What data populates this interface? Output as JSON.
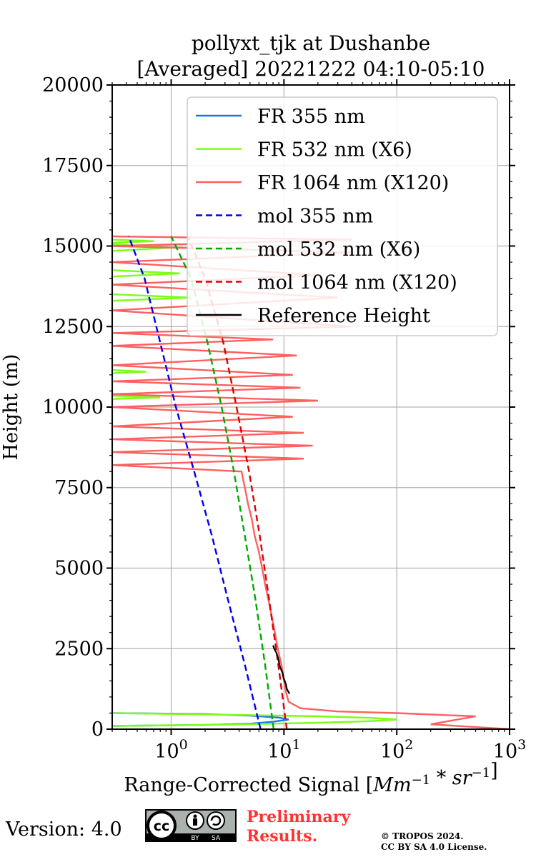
{
  "chart_data": {
    "type": "line",
    "title": [
      "pollyxt_tjk at Dushanbe",
      "[Averaged] 20221222 04:10-05:10"
    ],
    "xlabel": "Range-Corrected Signal [Mm^-1 * sr^-1]",
    "ylabel": "Height (m)",
    "xscale": "log",
    "xlim": [
      0.3,
      1000
    ],
    "ylim": [
      0,
      20000
    ],
    "xticks": [
      1,
      10,
      100,
      1000
    ],
    "xtick_labels": [
      [
        "10",
        "0"
      ],
      [
        "10",
        "1"
      ],
      [
        "10",
        "2"
      ],
      [
        "10",
        "3"
      ]
    ],
    "yticks": [
      0,
      2500,
      5000,
      7500,
      10000,
      12500,
      15000,
      17500,
      20000
    ],
    "ytick_labels": [
      "0",
      "2500",
      "5000",
      "7500",
      "10000",
      "12500",
      "15000",
      "17500",
      "20000"
    ],
    "grid": true,
    "legend_position": "upper-right",
    "series": [
      {
        "name": "FR 355 nm",
        "color": "#1a75e8",
        "style": "solid",
        "x": [
          0.3,
          2,
          5,
          8,
          11,
          9,
          5,
          2,
          0.3
        ],
        "y": [
          100,
          130,
          170,
          230,
          300,
          360,
          420,
          470,
          500
        ]
      },
      {
        "name": "FR 532 nm (X6)",
        "color": "#7cfc1a",
        "style": "solid",
        "x": [
          0.3,
          3,
          20,
          60,
          100,
          60,
          20,
          3,
          0.3,
          0.3,
          0.8,
          0.3,
          0.3,
          0.6,
          0.3,
          0.3,
          1.5,
          0.3,
          0.3,
          1.2,
          0.3,
          0.3,
          1,
          0.3,
          0.3,
          0.7,
          0.3
        ],
        "y": [
          100,
          140,
          200,
          250,
          300,
          350,
          400,
          450,
          500,
          10250,
          10300,
          10350,
          11050,
          11100,
          11150,
          13300,
          13400,
          13500,
          14050,
          14150,
          14250,
          14850,
          14950,
          15050,
          15100,
          15150,
          15200
        ]
      },
      {
        "name": "FR 1064 nm (X120)",
        "color": "#ff6060",
        "style": "solid",
        "x": [
          1000,
          200,
          500,
          100,
          30,
          14,
          11,
          10.5,
          10,
          9.5,
          8.8,
          8.3,
          7.8,
          7.3,
          6.8,
          6.4,
          6,
          5.5,
          5.2,
          4.8,
          4.5,
          4.2,
          0.3,
          15,
          0.3,
          18,
          0.3,
          15,
          0.3,
          12,
          0.3,
          20,
          0.3,
          14,
          0.3,
          12,
          0.3,
          13,
          0.3,
          8,
          0.3,
          40,
          0.3,
          30,
          0.3,
          20,
          0.3,
          40,
          0.3,
          40,
          0.3
        ],
        "y": [
          0,
          150,
          400,
          500,
          550,
          650,
          850,
          1100,
          1500,
          2000,
          2500,
          3000,
          3500,
          4000,
          4500,
          5000,
          5500,
          6000,
          6500,
          7000,
          7500,
          8000,
          8200,
          8400,
          8600,
          8800,
          9000,
          9200,
          9400,
          9700,
          10000,
          10200,
          10400,
          10600,
          10800,
          11000,
          11300,
          11600,
          11900,
          12100,
          12300,
          12500,
          13000,
          13400,
          13800,
          14100,
          14500,
          14800,
          15000,
          15200,
          15300
        ]
      },
      {
        "name": "mol 355 nm",
        "color": "#0000ee",
        "style": "dashed",
        "x": [
          6.2,
          4.5,
          3.2,
          2.3,
          1.6,
          1.1,
          0.8,
          0.58,
          0.42
        ],
        "y": [
          0,
          2000,
          4000,
          6000,
          8000,
          10000,
          12000,
          14000,
          15300
        ]
      },
      {
        "name": "mol 532 nm (X6)",
        "color": "#00aa00",
        "style": "dashed",
        "x": [
          8.1,
          6.8,
          5.6,
          4.5,
          3.6,
          2.8,
          2.1,
          1.5,
          1.0
        ],
        "y": [
          0,
          2000,
          4000,
          6000,
          8000,
          10000,
          12000,
          14000,
          15300
        ]
      },
      {
        "name": "mol 1064 nm (X120)",
        "color": "#dd0000",
        "style": "dashed",
        "x": [
          10.6,
          8.9,
          7.4,
          6.1,
          4.9,
          3.8,
          2.9,
          2.0,
          1.4
        ],
        "y": [
          0,
          2000,
          4000,
          6000,
          8000,
          10000,
          12000,
          14000,
          15300
        ]
      },
      {
        "name": "Reference Height",
        "color": "#000000",
        "style": "solid",
        "x": [
          11.2,
          10.6,
          10.4,
          9.9,
          9.7,
          9.2,
          9.0,
          8.8,
          8.5,
          8.2,
          8.0
        ],
        "y": [
          1100,
          1250,
          1400,
          1600,
          1750,
          1950,
          2100,
          2250,
          2400,
          2500,
          2600
        ]
      }
    ]
  },
  "footer": {
    "version": "Version: 4.0",
    "license_badge": {
      "text": "cc",
      "by": "BY",
      "sa": "SA",
      "icon": "cc-by-sa-icon"
    },
    "preliminary": [
      "Preliminary",
      "Results."
    ],
    "copyright": [
      "© TROPOS 2024.",
      "CC BY SA 4.0 License."
    ]
  }
}
